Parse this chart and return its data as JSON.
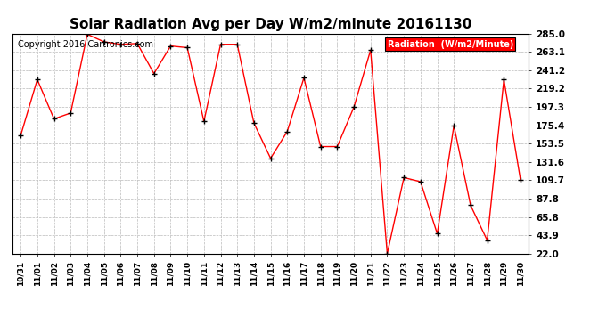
{
  "title": "Solar Radiation Avg per Day W/m2/minute 20161130",
  "copyright": "Copyright 2016 Cartronics.com",
  "legend_label": "Radiation  (W/m2/Minute)",
  "dates": [
    "10/31",
    "11/01",
    "11/02",
    "11/03",
    "11/04",
    "11/05",
    "11/06",
    "11/07",
    "11/08",
    "11/09",
    "11/10",
    "11/11",
    "11/12",
    "11/13",
    "11/14",
    "11/15",
    "11/16",
    "11/17",
    "11/18",
    "11/19",
    "11/20",
    "11/21",
    "11/22",
    "11/23",
    "11/24",
    "11/25",
    "11/26",
    "11/27",
    "11/28",
    "11/29",
    "11/30"
  ],
  "values": [
    163.0,
    230.0,
    183.0,
    190.0,
    284.0,
    275.0,
    272.0,
    273.0,
    237.0,
    270.0,
    268.0,
    180.0,
    272.0,
    272.0,
    178.0,
    136.0,
    168.0,
    232.0,
    150.0,
    150.0,
    197.0,
    265.0,
    22.0,
    113.0,
    108.0,
    46.0,
    175.0,
    80.0,
    38.0,
    230.0,
    109.7
  ],
  "yticks": [
    22.0,
    43.9,
    65.8,
    87.8,
    109.7,
    131.6,
    153.5,
    175.4,
    197.3,
    219.2,
    241.2,
    263.1,
    285.0
  ],
  "ymin": 22.0,
  "ymax": 285.0,
  "line_color": "red",
  "marker_color": "black",
  "bg_color": "#ffffff",
  "grid_color": "#bbbbbb",
  "title_fontsize": 11,
  "copyright_fontsize": 7,
  "legend_bg": "red",
  "legend_text_color": "white"
}
